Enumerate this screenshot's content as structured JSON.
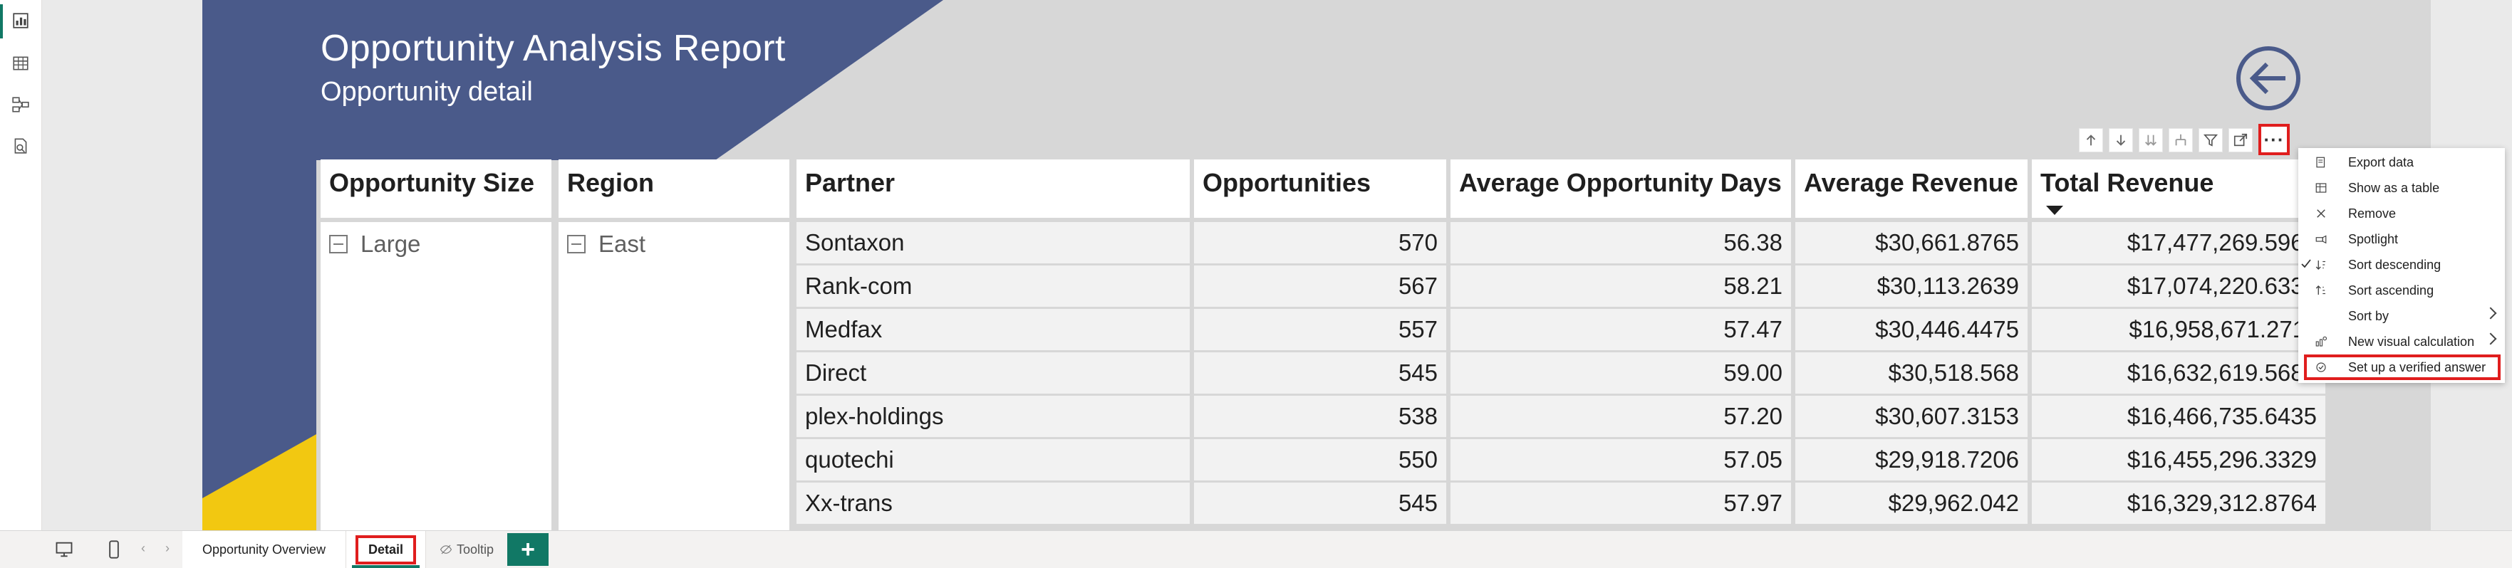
{
  "report": {
    "title": "Opportunity Analysis Report",
    "subtitle": "Opportunity detail"
  },
  "colors": {
    "banner_blue": "#4a5a8a",
    "banner_yellow": "#f2c811",
    "accent_green": "#117865",
    "highlight_red": "#e01e1e"
  },
  "left_rail": {
    "items": [
      {
        "icon": "report-view-icon",
        "active": true
      },
      {
        "icon": "table-view-icon",
        "active": false
      },
      {
        "icon": "model-view-icon",
        "active": false
      },
      {
        "icon": "dax-query-view-icon",
        "active": false
      }
    ]
  },
  "visual_toolbar": {
    "buttons": [
      "drill-up-icon",
      "drill-down-icon",
      "expand-next-level-icon",
      "expand-hierarchy-icon",
      "filter-icon",
      "focus-mode-icon",
      "more-options-icon"
    ],
    "more_label": "···"
  },
  "table": {
    "columns": [
      "Opportunity Size",
      "Region",
      "Partner",
      "Opportunities",
      "Average Opportunity Days",
      "Average Revenue",
      "Total Revenue"
    ],
    "sorted_column": "Total Revenue",
    "sort_direction": "descending",
    "group_size": "Large",
    "group_region": "East",
    "rows": [
      {
        "partner": "Sontaxon",
        "opportunities": "570",
        "avg_days": "56.38",
        "avg_revenue": "$30,661.8765",
        "total_revenue": "$17,477,269.5964"
      },
      {
        "partner": "Rank-com",
        "opportunities": "567",
        "avg_days": "58.21",
        "avg_revenue": "$30,113.2639",
        "total_revenue": "$17,074,220.6331"
      },
      {
        "partner": "Medfax",
        "opportunities": "557",
        "avg_days": "57.47",
        "avg_revenue": "$30,446.4475",
        "total_revenue": "$16,958,671.2711"
      },
      {
        "partner": "Direct",
        "opportunities": "545",
        "avg_days": "59.00",
        "avg_revenue": "$30,518.568",
        "total_revenue": "$16,632,619.5688"
      },
      {
        "partner": "plex-holdings",
        "opportunities": "538",
        "avg_days": "57.20",
        "avg_revenue": "$30,607.3153",
        "total_revenue": "$16,466,735.6435"
      },
      {
        "partner": "quotechi",
        "opportunities": "550",
        "avg_days": "57.05",
        "avg_revenue": "$29,918.7206",
        "total_revenue": "$16,455,296.3329"
      },
      {
        "partner": "Xx-trans",
        "opportunities": "545",
        "avg_days": "57.97",
        "avg_revenue": "$29,962.042",
        "total_revenue": "$16,329,312.8764"
      }
    ]
  },
  "context_menu": {
    "items": [
      {
        "label": "Export data",
        "icon": "export-data-icon",
        "submenu": false,
        "checked": false,
        "highlighted": false
      },
      {
        "label": "Show as a table",
        "icon": "show-as-table-icon",
        "submenu": false,
        "checked": false,
        "highlighted": false
      },
      {
        "label": "Remove",
        "icon": "remove-icon",
        "submenu": false,
        "checked": false,
        "highlighted": false
      },
      {
        "label": "Spotlight",
        "icon": "spotlight-icon",
        "submenu": false,
        "checked": false,
        "highlighted": false
      },
      {
        "label": "Sort descending",
        "icon": "sort-descending-icon",
        "submenu": false,
        "checked": true,
        "highlighted": false
      },
      {
        "label": "Sort ascending",
        "icon": "sort-ascending-icon",
        "submenu": false,
        "checked": false,
        "highlighted": false
      },
      {
        "label": "Sort by",
        "icon": "",
        "submenu": true,
        "checked": false,
        "highlighted": false
      },
      {
        "label": "New visual calculation",
        "icon": "visual-calculation-icon",
        "submenu": true,
        "checked": false,
        "highlighted": false
      },
      {
        "label": "Set up a verified answer",
        "icon": "verified-answer-icon",
        "submenu": false,
        "checked": false,
        "highlighted": true
      }
    ]
  },
  "bottom_bar": {
    "tabs": [
      {
        "label": "Opportunity Overview",
        "active": false,
        "hidden": false
      },
      {
        "label": "Detail",
        "active": true,
        "hidden": false
      },
      {
        "label": "Tooltip",
        "active": false,
        "hidden": true
      }
    ],
    "add_label": "+"
  }
}
